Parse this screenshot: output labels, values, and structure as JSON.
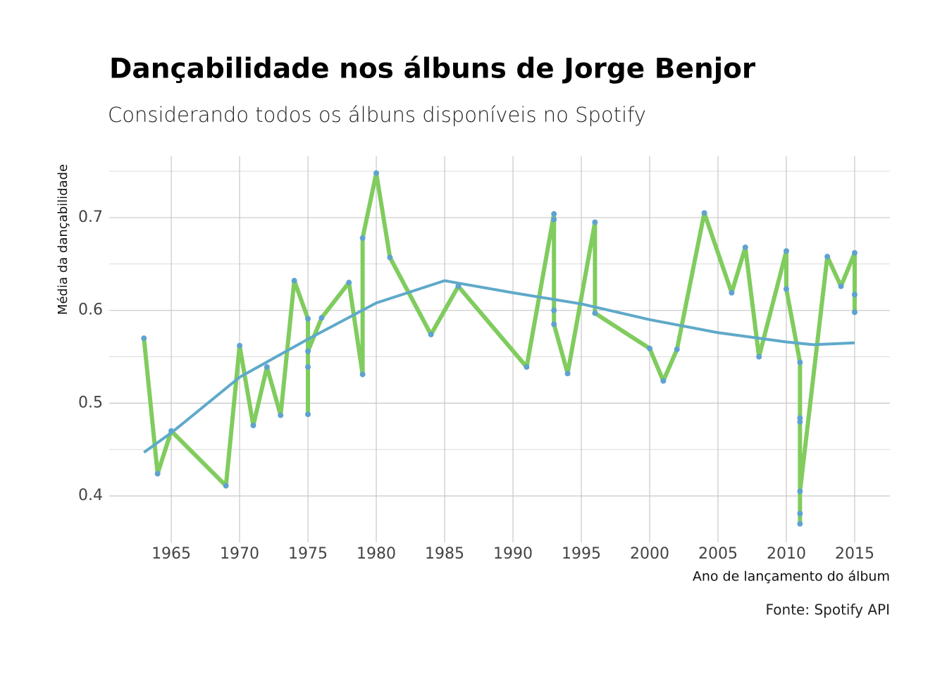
{
  "chart_data": {
    "type": "line",
    "title": "Dançabilidade nos álbuns de Jorge Benjor",
    "subtitle": "Considerando todos os álbuns disponíveis no Spotify",
    "x_label": "Ano de lançamento do álbum",
    "y_label": "Média da dançabilidade",
    "source": "Fonte: Spotify API",
    "xlim": [
      1960.46,
      2017.58
    ],
    "ylim": [
      0.35,
      0.766
    ],
    "xticks": [
      1965,
      1970,
      1975,
      1980,
      1985,
      1990,
      1995,
      2000,
      2005,
      2010,
      2015
    ],
    "yticks": [
      0.4,
      0.5,
      0.6,
      0.7
    ],
    "y_minor_ticks": [
      0.45,
      0.55,
      0.65,
      0.75
    ],
    "grid": true,
    "series": [
      {
        "color": "#80cc5e",
        "point_color": "#5fa2d0",
        "x": [
          1963,
          1964,
          1965,
          1969,
          1970,
          1971,
          1972,
          1973,
          1974,
          1975,
          1975,
          1975,
          1975,
          1976,
          1978,
          1979,
          1979,
          1980,
          1981,
          1984,
          1986,
          1991,
          1993,
          1993,
          1993,
          1993,
          1994,
          1996,
          1996,
          2000,
          2001,
          2002,
          2004,
          2006,
          2007,
          2008,
          2010,
          2010,
          2011,
          2011,
          2011,
          2011,
          2011,
          2011,
          2013,
          2014,
          2015,
          2015,
          2015
        ],
        "values": [
          0.57,
          0.424,
          0.47,
          0.411,
          0.562,
          0.476,
          0.539,
          0.487,
          0.632,
          0.591,
          0.488,
          0.539,
          0.556,
          0.592,
          0.63,
          0.531,
          0.678,
          0.748,
          0.657,
          0.574,
          0.626,
          0.539,
          0.704,
          0.698,
          0.6,
          0.585,
          0.532,
          0.695,
          0.597,
          0.559,
          0.524,
          0.558,
          0.705,
          0.619,
          0.668,
          0.55,
          0.664,
          0.623,
          0.544,
          0.484,
          0.48,
          0.37,
          0.381,
          0.405,
          0.658,
          0.626,
          0.662,
          0.617,
          0.598
        ]
      },
      {
        "color": "#5fa9c9",
        "x": [
          1963,
          1965,
          1970,
          1975,
          1980,
          1985,
          1990,
          1995,
          2000,
          2005,
          2010,
          2012,
          2015
        ],
        "values": [
          0.447,
          0.468,
          0.528,
          0.569,
          0.608,
          0.632,
          0.619,
          0.607,
          0.59,
          0.576,
          0.566,
          0.563,
          0.565
        ]
      }
    ]
  }
}
